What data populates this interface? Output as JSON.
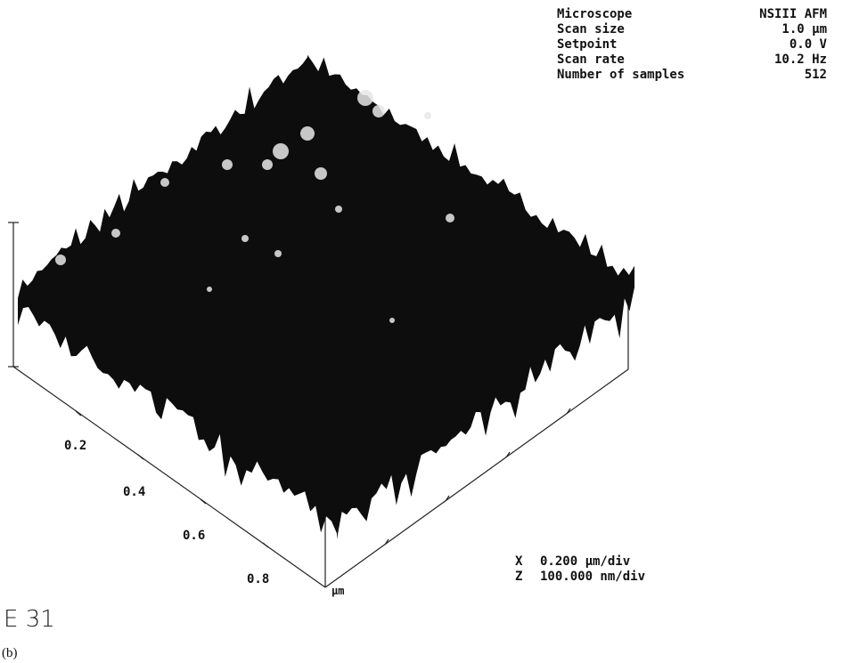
{
  "params": {
    "rows": [
      [
        "Microscope",
        "NSIII AFM"
      ],
      [
        "Scan size",
        "1.0 µm"
      ],
      [
        "Setpoint",
        "0.0 V"
      ],
      [
        "Scan rate",
        "10.2 Hz"
      ],
      [
        "Number of samples",
        "512"
      ]
    ]
  },
  "axis": {
    "labels": [
      "0.2",
      "0.4",
      "0.6",
      "0.8"
    ],
    "unit": "µm"
  },
  "scale": {
    "rows": [
      [
        "X",
        "0.200 µm/div"
      ],
      [
        "Z",
        "100.000 nm/div"
      ]
    ]
  },
  "image_id": "E 31",
  "caption": "(b)"
}
